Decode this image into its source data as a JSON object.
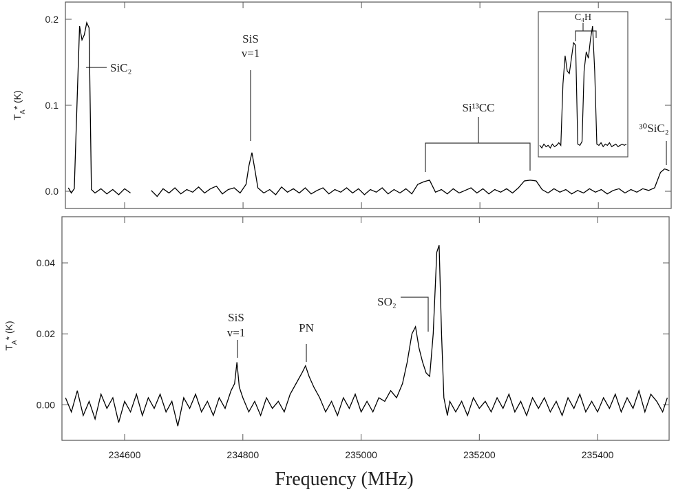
{
  "chart_data": [
    {
      "type": "line",
      "ylabel": [
        "T",
        "A",
        "* (K)"
      ],
      "xlim": [
        234500,
        235523
      ],
      "xticks": [
        234600,
        234800,
        235000,
        235200,
        235400
      ],
      "show_xtick_labels": false,
      "ylim": [
        -0.02,
        0.22
      ],
      "yticks": [
        {
          "value": 0,
          "label": "0.0"
        },
        0.1,
        0.2
      ],
      "grid": false,
      "color": "#000000",
      "x": [
        234505,
        234510,
        234515,
        234520,
        234524,
        234528,
        234532,
        234536,
        234540,
        234544,
        234550,
        234560,
        234570,
        234580,
        234590,
        234600,
        234610,
        234620,
        234630,
        234645,
        234655,
        234665,
        234675,
        234685,
        234695,
        234705,
        234715,
        234725,
        234735,
        234745,
        234755,
        234765,
        234775,
        234785,
        234795,
        234805,
        234810,
        234815,
        234820,
        234825,
        234835,
        234845,
        234855,
        234865,
        234875,
        234885,
        234895,
        234905,
        234915,
        234925,
        234935,
        234945,
        234955,
        234965,
        234975,
        234985,
        234995,
        235005,
        235015,
        235025,
        235035,
        235045,
        235055,
        235065,
        235075,
        235085,
        235095,
        235105,
        235115,
        235125,
        235135,
        235145,
        235155,
        235165,
        235175,
        235185,
        235195,
        235205,
        235215,
        235225,
        235235,
        235245,
        235255,
        235265,
        235275,
        235285,
        235295,
        235305,
        235315,
        235325,
        235335,
        235345,
        235355,
        235365,
        235375,
        235385,
        235395,
        235405,
        235415,
        235425,
        235435,
        235445,
        235455,
        235465,
        235475,
        235485,
        235495,
        235505,
        235512,
        235520
      ],
      "values": [
        0.004,
        -0.002,
        0.003,
        0.11,
        0.192,
        0.176,
        0.182,
        0.196,
        0.19,
        0.002,
        -0.002,
        0.003,
        -0.003,
        0.002,
        -0.004,
        0.003,
        -0.002,
        null,
        null,
        0.001,
        -0.006,
        0.003,
        -0.002,
        0.004,
        -0.003,
        0.002,
        -0.001,
        0.005,
        -0.002,
        0.003,
        0.006,
        -0.003,
        0.002,
        0.004,
        -0.002,
        0.008,
        0.03,
        0.045,
        0.025,
        0.004,
        -0.002,
        0.002,
        -0.004,
        0.005,
        -0.001,
        0.003,
        -0.002,
        0.004,
        -0.003,
        0.001,
        0.004,
        -0.003,
        0.002,
        -0.001,
        0.004,
        -0.002,
        0.003,
        -0.004,
        0.002,
        -0.001,
        0.004,
        -0.003,
        0.002,
        -0.002,
        0.003,
        -0.003,
        0.008,
        0.011,
        0.013,
        -0.001,
        0.002,
        -0.003,
        0.003,
        -0.002,
        0.001,
        0.004,
        -0.002,
        0.003,
        -0.003,
        0.002,
        -0.001,
        0.003,
        -0.002,
        0.004,
        0.012,
        0.013,
        0.012,
        0.002,
        -0.002,
        0.003,
        -0.001,
        0.002,
        -0.003,
        0.001,
        -0.002,
        0.003,
        -0.001,
        0.002,
        -0.003,
        0.001,
        0.003,
        -0.002,
        0.002,
        -0.001,
        0.003,
        0.001,
        0.004,
        0.022,
        0.026,
        0.024
      ],
      "annotations": [
        "SiC₂",
        "SiS",
        "v=1",
        "Si¹³CC",
        "³⁰SiC₂",
        "C₄H"
      ],
      "inset": {
        "values": [
          0.02,
          0.0,
          0.03,
          0.01,
          0.02,
          0.0,
          0.03,
          0.01,
          0.02,
          0.04,
          0.02,
          0.5,
          0.72,
          0.6,
          0.58,
          0.7,
          0.82,
          0.8,
          0.03,
          0.02,
          0.05,
          0.6,
          0.75,
          0.7,
          0.85,
          0.95,
          0.6,
          0.03,
          0.02,
          0.04,
          0.01,
          0.03,
          0.02,
          0.04,
          0.01,
          0.02,
          0.03,
          0.01,
          0.02,
          0.03,
          0.02,
          0.03
        ]
      }
    },
    {
      "type": "line",
      "ylabel": [
        "T",
        "A",
        "* (K)"
      ],
      "xlabel": "Frequency (MHz)",
      "xlim": [
        234494,
        235521
      ],
      "xticks": [
        234600,
        234800,
        235000,
        235200,
        235400
      ],
      "show_xtick_labels": true,
      "ylim": [
        -0.01,
        0.053
      ],
      "yticks": [
        {
          "value": 0,
          "label": "0.00"
        },
        {
          "value": 0.02,
          "label": "0.02"
        },
        {
          "value": 0.04,
          "label": "0.04"
        }
      ],
      "grid": false,
      "color": "#000000",
      "x": [
        234500,
        234510,
        234520,
        234530,
        234540,
        234550,
        234560,
        234570,
        234580,
        234590,
        234600,
        234610,
        234620,
        234630,
        234640,
        234650,
        234660,
        234670,
        234680,
        234690,
        234700,
        234710,
        234720,
        234730,
        234740,
        234750,
        234760,
        234770,
        234780,
        234786,
        234790,
        234794,
        234800,
        234810,
        234820,
        234830,
        234840,
        234850,
        234860,
        234870,
        234880,
        234890,
        234900,
        234906,
        234912,
        234920,
        234930,
        234940,
        234950,
        234960,
        234970,
        234980,
        234990,
        235000,
        235010,
        235020,
        235030,
        235040,
        235050,
        235060,
        235070,
        235078,
        235086,
        235092,
        235098,
        235104,
        235110,
        235116,
        235122,
        235128,
        235132,
        235136,
        235140,
        235146,
        235150,
        235160,
        235170,
        235180,
        235190,
        235200,
        235210,
        235220,
        235230,
        235240,
        235250,
        235260,
        235270,
        235280,
        235290,
        235300,
        235310,
        235320,
        235330,
        235340,
        235350,
        235360,
        235370,
        235380,
        235390,
        235400,
        235410,
        235420,
        235430,
        235440,
        235450,
        235460,
        235470,
        235480,
        235490,
        235500,
        235510,
        235518
      ],
      "values": [
        0.002,
        -0.002,
        0.004,
        -0.003,
        0.001,
        -0.004,
        0.003,
        -0.001,
        0.002,
        -0.005,
        0.001,
        -0.002,
        0.003,
        -0.003,
        0.002,
        -0.001,
        0.003,
        -0.002,
        0.001,
        -0.006,
        0.002,
        -0.001,
        0.003,
        -0.002,
        0.001,
        -0.003,
        0.002,
        -0.001,
        0.004,
        0.006,
        0.012,
        0.005,
        0.002,
        -0.002,
        0.001,
        -0.003,
        0.002,
        -0.001,
        0.001,
        -0.002,
        0.003,
        0.006,
        0.009,
        0.011,
        0.008,
        0.005,
        0.002,
        -0.002,
        0.001,
        -0.003,
        0.002,
        -0.001,
        0.003,
        -0.002,
        0.001,
        -0.002,
        0.002,
        0.001,
        0.004,
        0.002,
        0.006,
        0.012,
        0.02,
        0.022,
        0.016,
        0.012,
        0.009,
        0.008,
        0.02,
        0.043,
        0.045,
        0.02,
        0.002,
        -0.003,
        0.001,
        -0.002,
        0.001,
        -0.003,
        0.002,
        -0.001,
        0.001,
        -0.002,
        0.002,
        -0.001,
        0.003,
        -0.002,
        0.001,
        -0.003,
        0.002,
        -0.001,
        0.002,
        -0.002,
        0.001,
        -0.003,
        0.002,
        -0.001,
        0.003,
        -0.002,
        0.001,
        -0.002,
        0.002,
        -0.001,
        0.003,
        -0.002,
        0.002,
        -0.001,
        0.004,
        -0.002,
        0.003,
        0.001,
        -0.002,
        0.002
      ],
      "annotations": [
        "SiS",
        "v=1",
        "PN",
        "SO₂"
      ]
    }
  ]
}
